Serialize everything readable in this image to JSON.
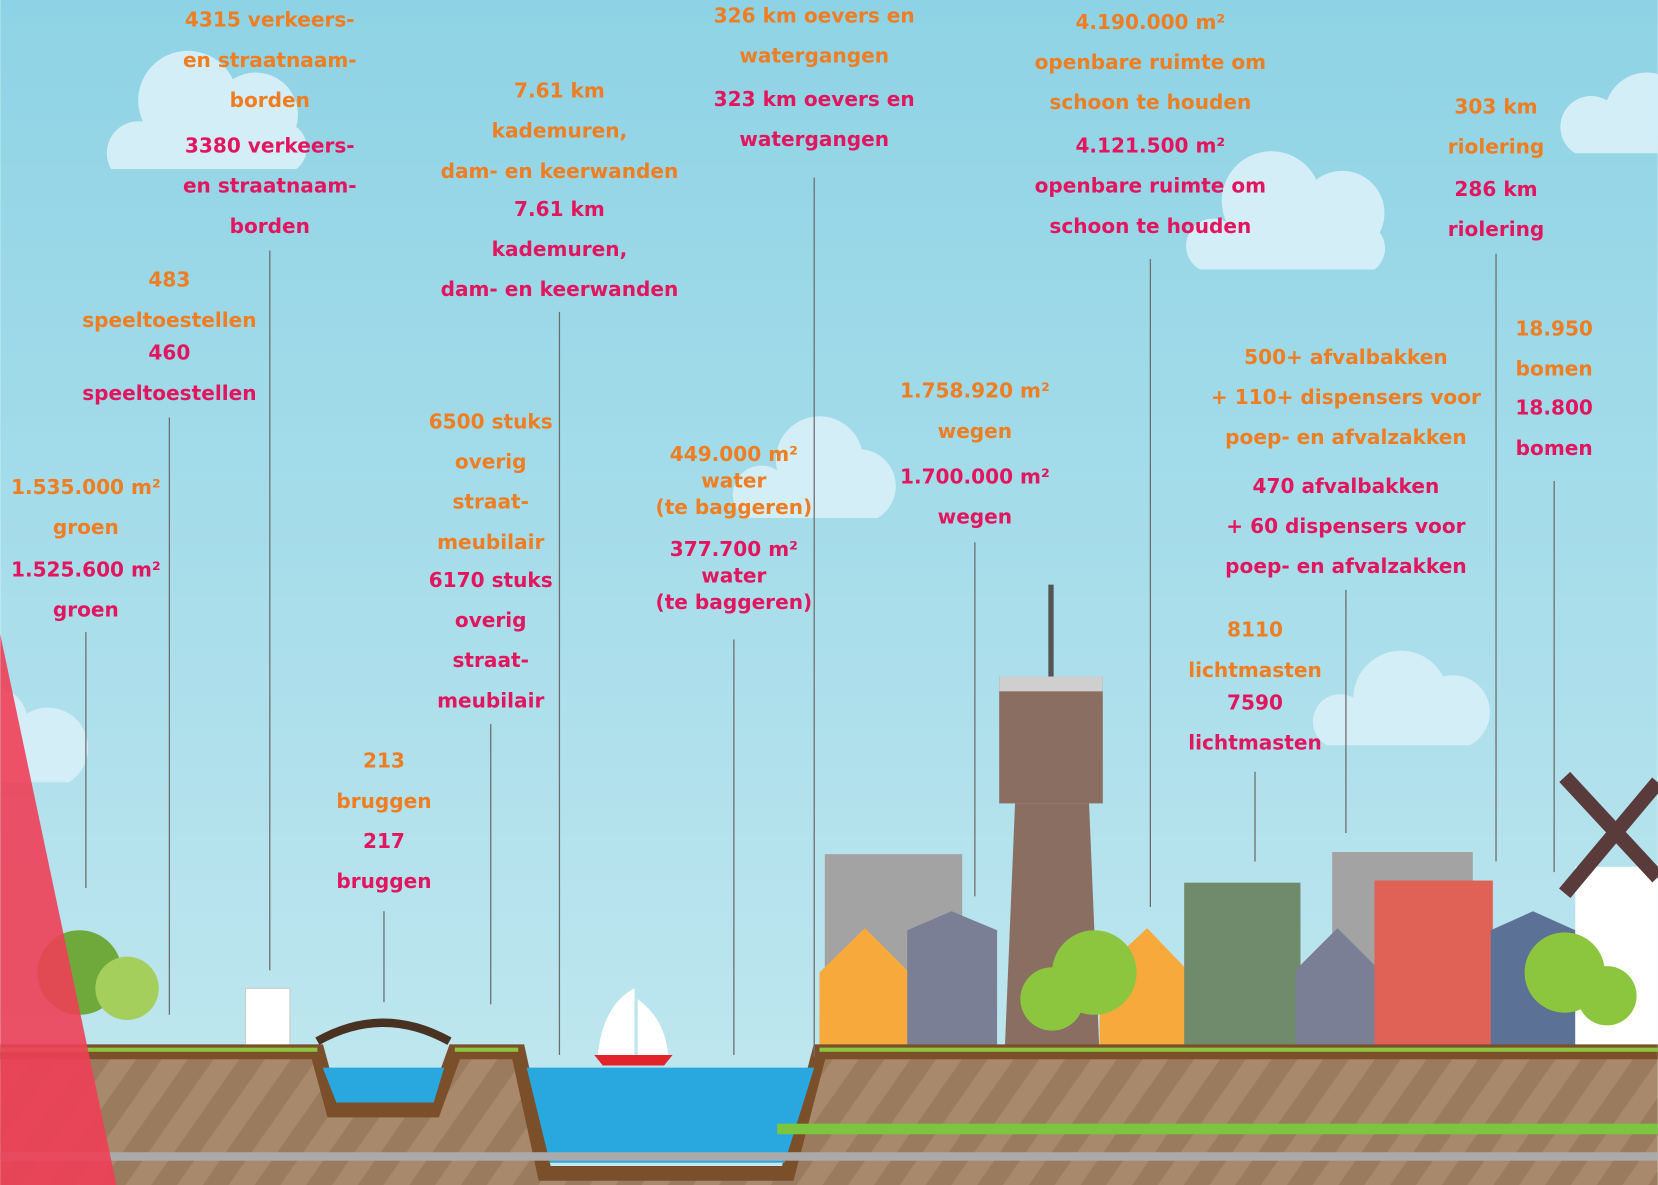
{
  "items": [
    {
      "old": [
        "4315 verkeers-",
        "en straatnaam-",
        "borden"
      ],
      "new": [
        "3380 verkeers-",
        "en straatnaam-",
        "borden"
      ]
    },
    {
      "old": [
        "483",
        "speeltoestellen"
      ],
      "new": [
        "460",
        "speeltoestellen"
      ]
    },
    {
      "old": [
        "1.535.000 m²",
        "groen"
      ],
      "new": [
        "1.525.600 m²",
        "groen"
      ]
    },
    {
      "old": [
        "7.61  km",
        "kademuren,",
        "dam- en keerwanden"
      ],
      "new": [
        "7.61 km",
        "kademuren,",
        "dam- en keerwanden"
      ]
    },
    {
      "old": [
        "326 km oevers en",
        "watergangen"
      ],
      "new": [
        "323 km oevers en",
        "watergangen"
      ]
    },
    {
      "old": [
        "4.190.000 m²",
        "openbare ruimte om",
        "schoon te houden"
      ],
      "new": [
        "4.121.500 m²",
        "openbare ruimte om",
        "schoon te houden"
      ]
    },
    {
      "old": [
        "303 km",
        "riolering"
      ],
      "new": [
        "286 km",
        "riolering"
      ]
    },
    {
      "old": [
        "18.950",
        "bomen"
      ],
      "new": [
        "18.800",
        "bomen"
      ]
    },
    {
      "old": [
        "6500 stuks",
        "overig",
        "straat-",
        "meubilair"
      ],
      "new": [
        "6170 stuks",
        "overig",
        "straat-",
        "meubilair"
      ]
    },
    {
      "old": [
        "449.000 m²",
        "water",
        "(te baggeren)"
      ],
      "new": [
        "377.700 m²",
        "water",
        "(te baggeren)"
      ]
    },
    {
      "old": [
        "1.758.920 m²",
        "wegen"
      ],
      "new": [
        "1.700.000 m²",
        "wegen"
      ]
    },
    {
      "old": [
        "500+ afvalbakken",
        "+ 110+ dispensers voor",
        "poep- en afvalzakken"
      ],
      "new": [
        "470 afvalbakken",
        "+ 60 dispensers voor",
        "poep- en afvalzakken"
      ]
    },
    {
      "old": [
        "8110",
        "lichtmasten"
      ],
      "new": [
        "7590",
        "lichtmasten"
      ]
    },
    {
      "old": [
        "213",
        "bruggen"
      ],
      "new": [
        "217",
        "bruggen"
      ]
    }
  ]
}
